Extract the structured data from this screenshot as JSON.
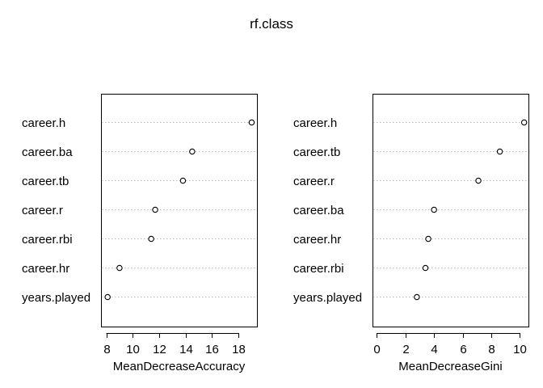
{
  "title": "rf.class",
  "chart_data": [
    {
      "type": "scatter",
      "xlabel": "MeanDecreaseAccuracy",
      "xlim": [
        7.6,
        19.4
      ],
      "xticks": [
        8,
        10,
        12,
        14,
        16,
        18
      ],
      "grid": "dotted-horizontal",
      "categories": [
        "career.h",
        "career.ba",
        "career.tb",
        "career.r",
        "career.rbi",
        "career.hr",
        "years.played"
      ],
      "values": [
        19.0,
        14.5,
        13.8,
        11.7,
        11.4,
        9.0,
        8.1
      ]
    },
    {
      "type": "scatter",
      "xlabel": "MeanDecreaseGini",
      "xlim": [
        -0.3,
        10.6
      ],
      "xticks": [
        0,
        2,
        4,
        6,
        8,
        10
      ],
      "grid": "dotted-horizontal",
      "categories": [
        "career.h",
        "career.tb",
        "career.r",
        "career.ba",
        "career.hr",
        "career.rbi",
        "years.played"
      ],
      "values": [
        10.3,
        8.6,
        7.1,
        4.0,
        3.6,
        3.4,
        2.8
      ]
    }
  ]
}
